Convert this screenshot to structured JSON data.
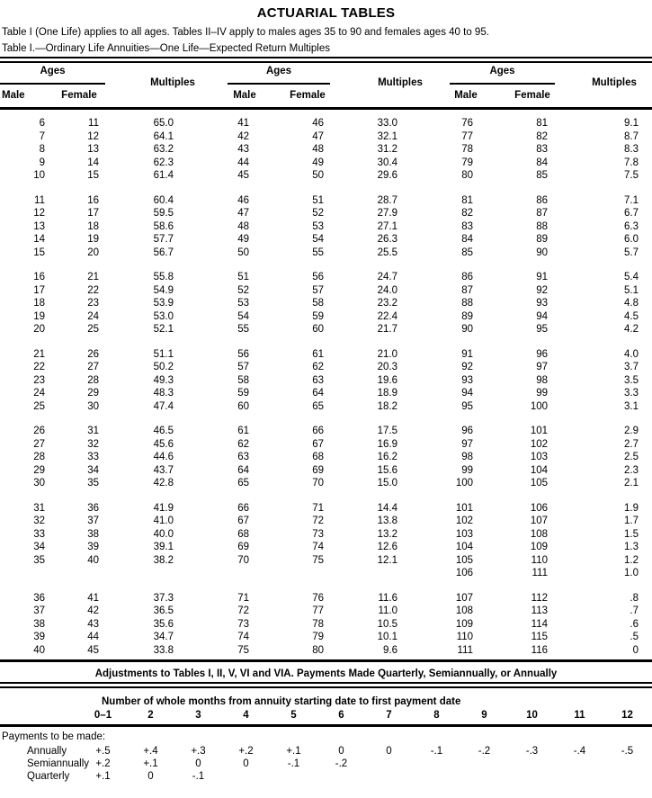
{
  "page": {
    "title": "ACTUARIAL TABLES",
    "intro": "Table I (One Life) applies to all ages. Tables II–IV apply to males ages 35 to 90 and females ages 40 to 95.",
    "caption": "Table I.—Ordinary Life Annuities—One Life—Expected Return Multiples"
  },
  "main_table": {
    "ages_header": "Ages",
    "male_header": "Male",
    "female_header": "Female",
    "multiples_header": "Multiples",
    "blocks": [
      [
        [
          "6",
          "11",
          "65.0",
          "41",
          "46",
          "33.0",
          "76",
          "81",
          "9.1"
        ],
        [
          "7",
          "12",
          "64.1",
          "42",
          "47",
          "32.1",
          "77",
          "82",
          "8.7"
        ],
        [
          "8",
          "13",
          "63.2",
          "43",
          "48",
          "31.2",
          "78",
          "83",
          "8.3"
        ],
        [
          "9",
          "14",
          "62.3",
          "44",
          "49",
          "30.4",
          "79",
          "84",
          "7.8"
        ],
        [
          "10",
          "15",
          "61.4",
          "45",
          "50",
          "29.6",
          "80",
          "85",
          "7.5"
        ]
      ],
      [
        [
          "11",
          "16",
          "60.4",
          "46",
          "51",
          "28.7",
          "81",
          "86",
          "7.1"
        ],
        [
          "12",
          "17",
          "59.5",
          "47",
          "52",
          "27.9",
          "82",
          "87",
          "6.7"
        ],
        [
          "13",
          "18",
          "58.6",
          "48",
          "53",
          "27.1",
          "83",
          "88",
          "6.3"
        ],
        [
          "14",
          "19",
          "57.7",
          "49",
          "54",
          "26.3",
          "84",
          "89",
          "6.0"
        ],
        [
          "15",
          "20",
          "56.7",
          "50",
          "55",
          "25.5",
          "85",
          "90",
          "5.7"
        ]
      ],
      [
        [
          "16",
          "21",
          "55.8",
          "51",
          "56",
          "24.7",
          "86",
          "91",
          "5.4"
        ],
        [
          "17",
          "22",
          "54.9",
          "52",
          "57",
          "24.0",
          "87",
          "92",
          "5.1"
        ],
        [
          "18",
          "23",
          "53.9",
          "53",
          "58",
          "23.2",
          "88",
          "93",
          "4.8"
        ],
        [
          "19",
          "24",
          "53.0",
          "54",
          "59",
          "22.4",
          "89",
          "94",
          "4.5"
        ],
        [
          "20",
          "25",
          "52.1",
          "55",
          "60",
          "21.7",
          "90",
          "95",
          "4.2"
        ]
      ],
      [
        [
          "21",
          "26",
          "51.1",
          "56",
          "61",
          "21.0",
          "91",
          "96",
          "4.0"
        ],
        [
          "22",
          "27",
          "50.2",
          "57",
          "62",
          "20.3",
          "92",
          "97",
          "3.7"
        ],
        [
          "23",
          "28",
          "49.3",
          "58",
          "63",
          "19.6",
          "93",
          "98",
          "3.5"
        ],
        [
          "24",
          "29",
          "48.3",
          "59",
          "64",
          "18.9",
          "94",
          "99",
          "3.3"
        ],
        [
          "25",
          "30",
          "47.4",
          "60",
          "65",
          "18.2",
          "95",
          "100",
          "3.1"
        ]
      ],
      [
        [
          "26",
          "31",
          "46.5",
          "61",
          "66",
          "17.5",
          "96",
          "101",
          "2.9"
        ],
        [
          "27",
          "32",
          "45.6",
          "62",
          "67",
          "16.9",
          "97",
          "102",
          "2.7"
        ],
        [
          "28",
          "33",
          "44.6",
          "63",
          "68",
          "16.2",
          "98",
          "103",
          "2.5"
        ],
        [
          "29",
          "34",
          "43.7",
          "64",
          "69",
          "15.6",
          "99",
          "104",
          "2.3"
        ],
        [
          "30",
          "35",
          "42.8",
          "65",
          "70",
          "15.0",
          "100",
          "105",
          "2.1"
        ]
      ],
      [
        [
          "31",
          "36",
          "41.9",
          "66",
          "71",
          "14.4",
          "101",
          "106",
          "1.9"
        ],
        [
          "32",
          "37",
          "41.0",
          "67",
          "72",
          "13.8",
          "102",
          "107",
          "1.7"
        ],
        [
          "33",
          "38",
          "40.0",
          "68",
          "73",
          "13.2",
          "103",
          "108",
          "1.5"
        ],
        [
          "34",
          "39",
          "39.1",
          "69",
          "74",
          "12.6",
          "104",
          "109",
          "1.3"
        ],
        [
          "35",
          "40",
          "38.2",
          "70",
          "75",
          "12.1",
          "105",
          "110",
          "1.2"
        ],
        [
          "",
          "",
          "",
          "",
          "",
          "",
          "106",
          "111",
          "1.0"
        ]
      ],
      [
        [
          "36",
          "41",
          "37.3",
          "71",
          "76",
          "11.6",
          "107",
          "112",
          ".8"
        ],
        [
          "37",
          "42",
          "36.5",
          "72",
          "77",
          "11.0",
          "108",
          "113",
          ".7"
        ],
        [
          "38",
          "43",
          "35.6",
          "73",
          "78",
          "10.5",
          "109",
          "114",
          ".6"
        ],
        [
          "39",
          "44",
          "34.7",
          "74",
          "79",
          "10.1",
          "110",
          "115",
          ".5"
        ],
        [
          "40",
          "45",
          "33.8",
          "75",
          "80",
          "9.6",
          "111",
          "116",
          "0"
        ]
      ]
    ]
  },
  "adjustments": {
    "title": "Adjustments to Tables I, II, V, VI and VIA. Payments Made Quarterly, Semiannually, or Annually",
    "months_label": "Number of whole months from annuity starting date to first payment date",
    "months": [
      "0–1",
      "2",
      "3",
      "4",
      "5",
      "6",
      "7",
      "8",
      "9",
      "10",
      "11",
      "12"
    ],
    "payments_label": "Payments to be made:",
    "rows": [
      {
        "label": "Annually",
        "values": [
          "+.5",
          "+.4",
          "+.3",
          "+.2",
          "+.1",
          "0",
          "0",
          "-.1",
          "-.2",
          "-.3",
          "-.4",
          "-.5"
        ]
      },
      {
        "label": "Semiannually",
        "values": [
          "+.2",
          "+.1",
          "0",
          "0",
          "-.1",
          "-.2",
          "",
          "",
          "",
          "",
          "",
          ""
        ]
      },
      {
        "label": "Quarterly",
        "values": [
          "+.1",
          "0",
          "-.1",
          "",
          "",
          "",
          "",
          "",
          "",
          "",
          "",
          ""
        ]
      }
    ]
  }
}
